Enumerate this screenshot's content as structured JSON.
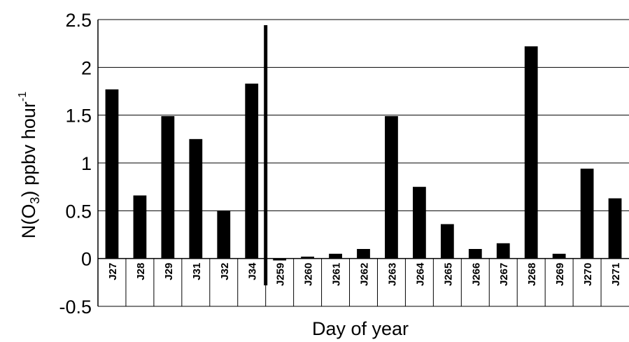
{
  "chart_data": {
    "type": "bar",
    "categories": [
      "J27",
      "J28",
      "J29",
      "J31",
      "J32",
      "J34",
      "J259",
      "J260",
      "J261",
      "J262",
      "J263",
      "J264",
      "J265",
      "J266",
      "J267",
      "J268",
      "J269",
      "J270",
      "J271"
    ],
    "values": [
      1.77,
      0.66,
      1.49,
      1.25,
      0.5,
      1.83,
      -0.02,
      0.02,
      0.05,
      0.1,
      1.49,
      0.75,
      0.36,
      0.1,
      0.16,
      2.22,
      0.05,
      0.94,
      0.63
    ],
    "ylim": [
      -0.5,
      2.5
    ],
    "yticks": [
      "-0.5",
      "0",
      "0.5",
      "1",
      "1.5",
      "2",
      "2.5"
    ],
    "xlabel": "Day of year",
    "ylabel": {
      "prefix": "N(O",
      "sub": "3",
      "middle": ") ppbv hour",
      "sup": "-1"
    },
    "divider_after_index": 5,
    "bar_color": "#000000",
    "gridlines": true,
    "legend": "none"
  }
}
